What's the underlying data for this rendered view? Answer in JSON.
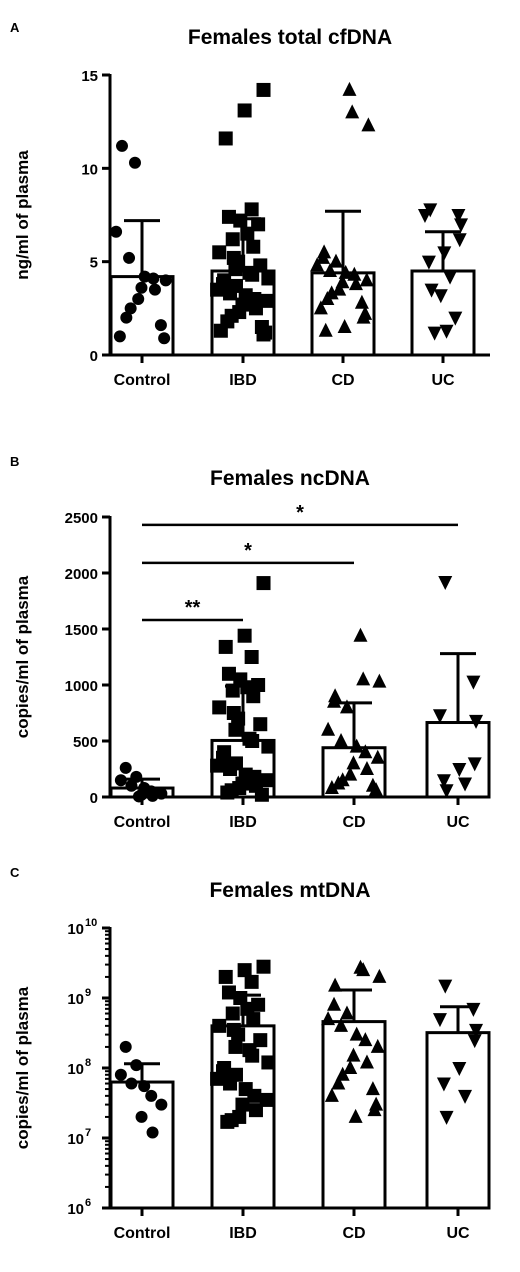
{
  "chart_data": [
    {
      "panel": "A",
      "type": "bar",
      "title": "Females total cfDNA",
      "ylabel": "ng/ml of plasma",
      "xlabel": "",
      "categories": [
        "Control",
        "IBD",
        "CD",
        "UC"
      ],
      "ylim": [
        0,
        15
      ],
      "yscale": "linear",
      "yticks": [
        0,
        5,
        10,
        15
      ],
      "ytick_labels": [
        "0",
        "5",
        "10",
        "15"
      ],
      "grid": false,
      "series": [
        {
          "values": [
            4.2,
            4.5,
            4.4,
            4.5
          ],
          "error_upper": [
            7.2,
            7.3,
            7.7,
            6.6
          ]
        }
      ],
      "markers": [
        "circle",
        "square",
        "triangle-up",
        "triangle-down"
      ],
      "points": [
        [
          11.2,
          10.3,
          6.6,
          5.2,
          4.2,
          4.1,
          4.0,
          3.6,
          3.5,
          3.0,
          2.5,
          2.0,
          1.6,
          1.0,
          0.9
        ],
        [
          14.2,
          13.1,
          11.6,
          7.8,
          7.4,
          7.2,
          7.0,
          6.5,
          6.2,
          5.8,
          5.5,
          5.2,
          5.0,
          4.8,
          4.6,
          4.4,
          4.3,
          4.1,
          4.0,
          3.8,
          3.7,
          3.5,
          3.3,
          3.2,
          3.0,
          2.9,
          2.7,
          2.5,
          2.3,
          2.1,
          1.8,
          1.5,
          1.3,
          1.2,
          1.1
        ],
        [
          14.2,
          13.0,
          12.3,
          5.5,
          5.2,
          5.0,
          4.8,
          4.5,
          4.4,
          4.3,
          4.0,
          3.9,
          3.8,
          3.5,
          3.3,
          3.0,
          2.8,
          2.5,
          2.2,
          2.0,
          1.5,
          1.3
        ],
        [
          7.8,
          7.5,
          7.5,
          7.0,
          6.2,
          5.5,
          5.0,
          4.2,
          3.5,
          3.2,
          2.0,
          1.3,
          1.2
        ]
      ],
      "significance": []
    },
    {
      "panel": "B",
      "type": "bar",
      "title": "Females ncDNA",
      "ylabel": "copies/ml of plasma",
      "xlabel": "",
      "categories": [
        "Control",
        "IBD",
        "CD",
        "UC"
      ],
      "ylim": [
        0,
        2500
      ],
      "yscale": "linear",
      "yticks": [
        0,
        500,
        1000,
        1500,
        2000,
        2500
      ],
      "ytick_labels": [
        "0",
        "500",
        "1000",
        "1500",
        "2000",
        "2500"
      ],
      "grid": false,
      "series": [
        {
          "values": [
            80,
            505,
            440,
            665
          ],
          "error_upper": [
            160,
            990,
            840,
            1280
          ]
        }
      ],
      "markers": [
        "circle",
        "square",
        "triangle-up",
        "triangle-down"
      ],
      "points": [
        [
          260,
          180,
          150,
          100,
          80,
          50,
          30,
          20,
          10,
          5
        ],
        [
          1910,
          1440,
          1340,
          1250,
          1100,
          1050,
          1000,
          980,
          950,
          900,
          800,
          750,
          700,
          650,
          600,
          520,
          500,
          450,
          400,
          350,
          300,
          280,
          250,
          200,
          180,
          150,
          120,
          100,
          80,
          60,
          40,
          20
        ],
        [
          1440,
          1050,
          1030,
          900,
          850,
          800,
          600,
          500,
          450,
          400,
          350,
          300,
          250,
          200,
          150,
          120,
          100,
          80,
          60,
          40
        ],
        [
          1920,
          1030,
          730,
          680,
          300,
          250,
          150,
          120,
          60
        ]
      ],
      "significance": [
        {
          "from": 0,
          "to": 1,
          "label": "**",
          "y": 1580
        },
        {
          "from": 0,
          "to": 2,
          "label": "*",
          "y": 2090
        },
        {
          "from": 0,
          "to": 3,
          "label": "*",
          "y": 2430
        }
      ]
    },
    {
      "panel": "C",
      "type": "bar",
      "title": "Females mtDNA",
      "ylabel": "copies/ml of plasma",
      "xlabel": "",
      "categories": [
        "Control",
        "IBD",
        "CD",
        "UC"
      ],
      "ylim": [
        1000000,
        10000000000
      ],
      "yscale": "log",
      "yticks": [
        1000000,
        10000000,
        100000000,
        1000000000,
        10000000000
      ],
      "ytick_labels": [
        [
          "10",
          "6"
        ],
        [
          "10",
          "7"
        ],
        [
          "10",
          "8"
        ],
        [
          "10",
          "9"
        ],
        [
          "10",
          "10"
        ]
      ],
      "grid": false,
      "series": [
        {
          "values": [
            63000000,
            400000000,
            460000000,
            320000000
          ],
          "error_upper": [
            115000000,
            1100000000,
            1300000000,
            750000000
          ]
        }
      ],
      "markers": [
        "circle",
        "square",
        "triangle-up",
        "triangle-down"
      ],
      "points": [
        [
          200000000,
          110000000,
          80000000,
          60000000,
          55000000,
          40000000,
          30000000,
          20000000,
          12000000
        ],
        [
          2800000000,
          2500000000,
          2000000000,
          1700000000,
          1200000000,
          1000000000,
          800000000,
          700000000,
          600000000,
          500000000,
          400000000,
          350000000,
          300000000,
          250000000,
          200000000,
          180000000,
          150000000,
          120000000,
          100000000,
          90000000,
          80000000,
          70000000,
          60000000,
          50000000,
          40000000,
          35000000,
          30000000,
          25000000,
          20000000,
          18000000,
          17000000
        ],
        [
          2700000000,
          2500000000,
          2000000000,
          1500000000,
          800000000,
          600000000,
          500000000,
          400000000,
          300000000,
          250000000,
          200000000,
          150000000,
          120000000,
          100000000,
          80000000,
          60000000,
          50000000,
          40000000,
          30000000,
          25000000,
          20000000
        ],
        [
          1500000000,
          700000000,
          500000000,
          350000000,
          250000000,
          100000000,
          60000000,
          40000000,
          20000000
        ]
      ],
      "significance": []
    }
  ]
}
